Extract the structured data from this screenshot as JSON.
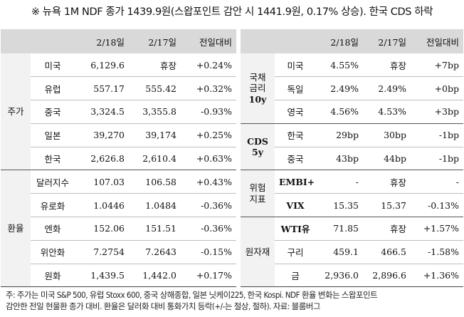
{
  "headline": "※ 뉴욕 1M NDF 종가 1439.9원(스왑포인트 감안 시 1441.9원, 0.17% 상승). 한국 CDS 하락",
  "left": {
    "headers": [
      "",
      "",
      "2/18일",
      "2/17일",
      "전일대비"
    ],
    "groups": [
      {
        "name": "주가",
        "rows": [
          [
            "미국",
            "6,129.6",
            "휴장",
            "+0.24%"
          ],
          [
            "유럽",
            "557.17",
            "555.42",
            "+0.32%"
          ],
          [
            "중국",
            "3,324.5",
            "3,355.8",
            "-0.93%"
          ],
          [
            "일본",
            "39,270",
            "39,174",
            "+0.25%"
          ],
          [
            "한국",
            "2,626.8",
            "2,610.4",
            "+0.63%"
          ]
        ]
      },
      {
        "name": "환율",
        "rows": [
          [
            "달러지수",
            "107.03",
            "106.58",
            "+0.43%"
          ],
          [
            "유로화",
            "1.0446",
            "1.0484",
            "-0.36%"
          ],
          [
            "엔화",
            "152.06",
            "151.51",
            "-0.36%"
          ],
          [
            "위안화",
            "7.2754",
            "7.2643",
            "-0.15%"
          ],
          [
            "원화",
            "1,439.5",
            "1,442.0",
            "+0.17%"
          ]
        ]
      }
    ]
  },
  "right": {
    "headers": [
      "",
      "",
      "2/18일",
      "2/17일",
      "전일대비"
    ],
    "groups": [
      {
        "name_lines": [
          "국채",
          "금리",
          "10y"
        ],
        "rows": [
          [
            "미국",
            "4.55%",
            "휴장",
            "+7bp"
          ],
          [
            "독일",
            "2.49%",
            "2.49%",
            "+0bp"
          ],
          [
            "영국",
            "4.56%",
            "4.53%",
            "+3bp"
          ]
        ]
      },
      {
        "name_lines": [
          "CDS",
          "5y"
        ],
        "rows": [
          [
            "한국",
            "29bp",
            "30bp",
            "-1bp"
          ],
          [
            "중국",
            "43bp",
            "44bp",
            "-1bp"
          ]
        ]
      },
      {
        "name_lines": [
          "위험",
          "지표"
        ],
        "rows": [
          [
            "EMBI+",
            "-",
            "휴장",
            "-"
          ],
          [
            "VIX",
            "15.35",
            "15.37",
            "-0.13%"
          ]
        ]
      },
      {
        "name_lines": [
          "원자재"
        ],
        "rows": [
          [
            "WTI유",
            "71.85",
            "휴장",
            "+1.57%"
          ],
          [
            "구리",
            "459.1",
            "466.5",
            "-1.58%"
          ],
          [
            "금",
            "2,936.0",
            "2,896.6",
            "+1.36%"
          ]
        ]
      }
    ]
  },
  "note": [
    "주: 주가는 미국 S&P 500, 유럽 Stoxx 600, 중국 상해종합, 일본 닛케이225, 한국 Kospi. NDF 환율 변화는 스왑포인트",
    "감안한 전일 현물환 종가 대비. 환율은 달러화 대비 통화가치 등락(+/-는 절상, 절하). 자료: 블룸버그"
  ]
}
